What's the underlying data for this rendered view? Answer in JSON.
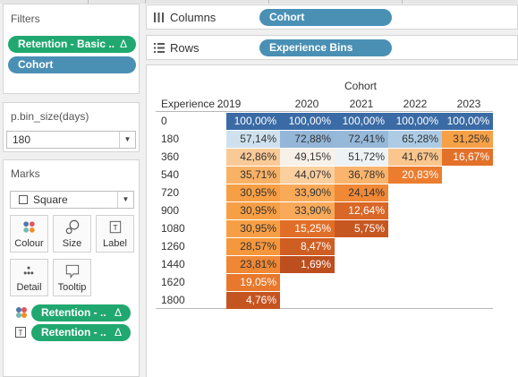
{
  "filters": {
    "title": "Filters",
    "items": [
      {
        "label": "Retention - Basic ..",
        "delta": "Δ",
        "color": "#20a870"
      },
      {
        "label": "Cohort",
        "delta": "",
        "color": "#4a90b5"
      }
    ]
  },
  "parameter": {
    "title": "p.bin_size(days)",
    "value": "180"
  },
  "marks": {
    "title": "Marks",
    "type": "Square",
    "buttons": [
      {
        "label": "Colour",
        "icon": "colour-dots-icon"
      },
      {
        "label": "Size",
        "icon": "size-icon"
      },
      {
        "label": "Label",
        "icon": "label-icon"
      },
      {
        "label": "Detail",
        "icon": "detail-dots-icon"
      },
      {
        "label": "Tooltip",
        "icon": "tooltip-icon"
      }
    ],
    "fields": [
      {
        "icon": "colour-dots-icon",
        "label": "Retention - ..",
        "delta": "Δ"
      },
      {
        "icon": "label-icon",
        "label": "Retention - ..",
        "delta": "Δ"
      }
    ]
  },
  "columns": {
    "label": "Columns",
    "pill": "Cohort"
  },
  "rows": {
    "label": "Rows",
    "pill": "Experience Bins"
  },
  "table": {
    "column_title": "Cohort",
    "row_title": "Experience ..",
    "years": [
      "2019",
      "2020",
      "2021",
      "2022",
      "2023"
    ],
    "row_labels": [
      "0",
      "180",
      "360",
      "540",
      "720",
      "900",
      "1080",
      "1260",
      "1440",
      "1620",
      "1800"
    ],
    "cells": [
      [
        "100,00%",
        "100,00%",
        "100,00%",
        "100,00%",
        "100,00%"
      ],
      [
        "57,14%",
        "72,88%",
        "72,41%",
        "65,28%",
        "31,25%"
      ],
      [
        "42,86%",
        "49,15%",
        "51,72%",
        "41,67%",
        "16,67%"
      ],
      [
        "35,71%",
        "44,07%",
        "36,78%",
        "20,83%",
        ""
      ],
      [
        "30,95%",
        "33,90%",
        "24,14%",
        "",
        ""
      ],
      [
        "30,95%",
        "33,90%",
        "12,64%",
        "",
        ""
      ],
      [
        "30,95%",
        "15,25%",
        "5,75%",
        "",
        ""
      ],
      [
        "28,57%",
        "8,47%",
        "",
        "",
        ""
      ],
      [
        "23,81%",
        "1,69%",
        "",
        "",
        ""
      ],
      [
        "19,05%",
        "",
        "",
        "",
        ""
      ],
      [
        "4,76%",
        "",
        "",
        "",
        ""
      ]
    ],
    "values": [
      [
        100.0,
        100.0,
        100.0,
        100.0,
        100.0
      ],
      [
        57.14,
        72.88,
        72.41,
        65.28,
        31.25
      ],
      [
        42.86,
        49.15,
        51.72,
        41.67,
        16.67
      ],
      [
        35.71,
        44.07,
        36.78,
        20.83,
        null
      ],
      [
        30.95,
        33.9,
        24.14,
        null,
        null
      ],
      [
        30.95,
        33.9,
        12.64,
        null,
        null
      ],
      [
        30.95,
        15.25,
        5.75,
        null,
        null
      ],
      [
        28.57,
        8.47,
        null,
        null,
        null
      ],
      [
        23.81,
        1.69,
        null,
        null,
        null
      ],
      [
        19.05,
        null,
        null,
        null,
        null
      ],
      [
        4.76,
        null,
        null,
        null,
        null
      ]
    ]
  },
  "colors": {
    "pill_green": "#20a870",
    "pill_blue": "#4a90b5",
    "diverging_blue_dark": "#3b6ba5",
    "diverging_mid": "#f7f7f7",
    "diverging_orange_dark": "#b84a1d"
  }
}
